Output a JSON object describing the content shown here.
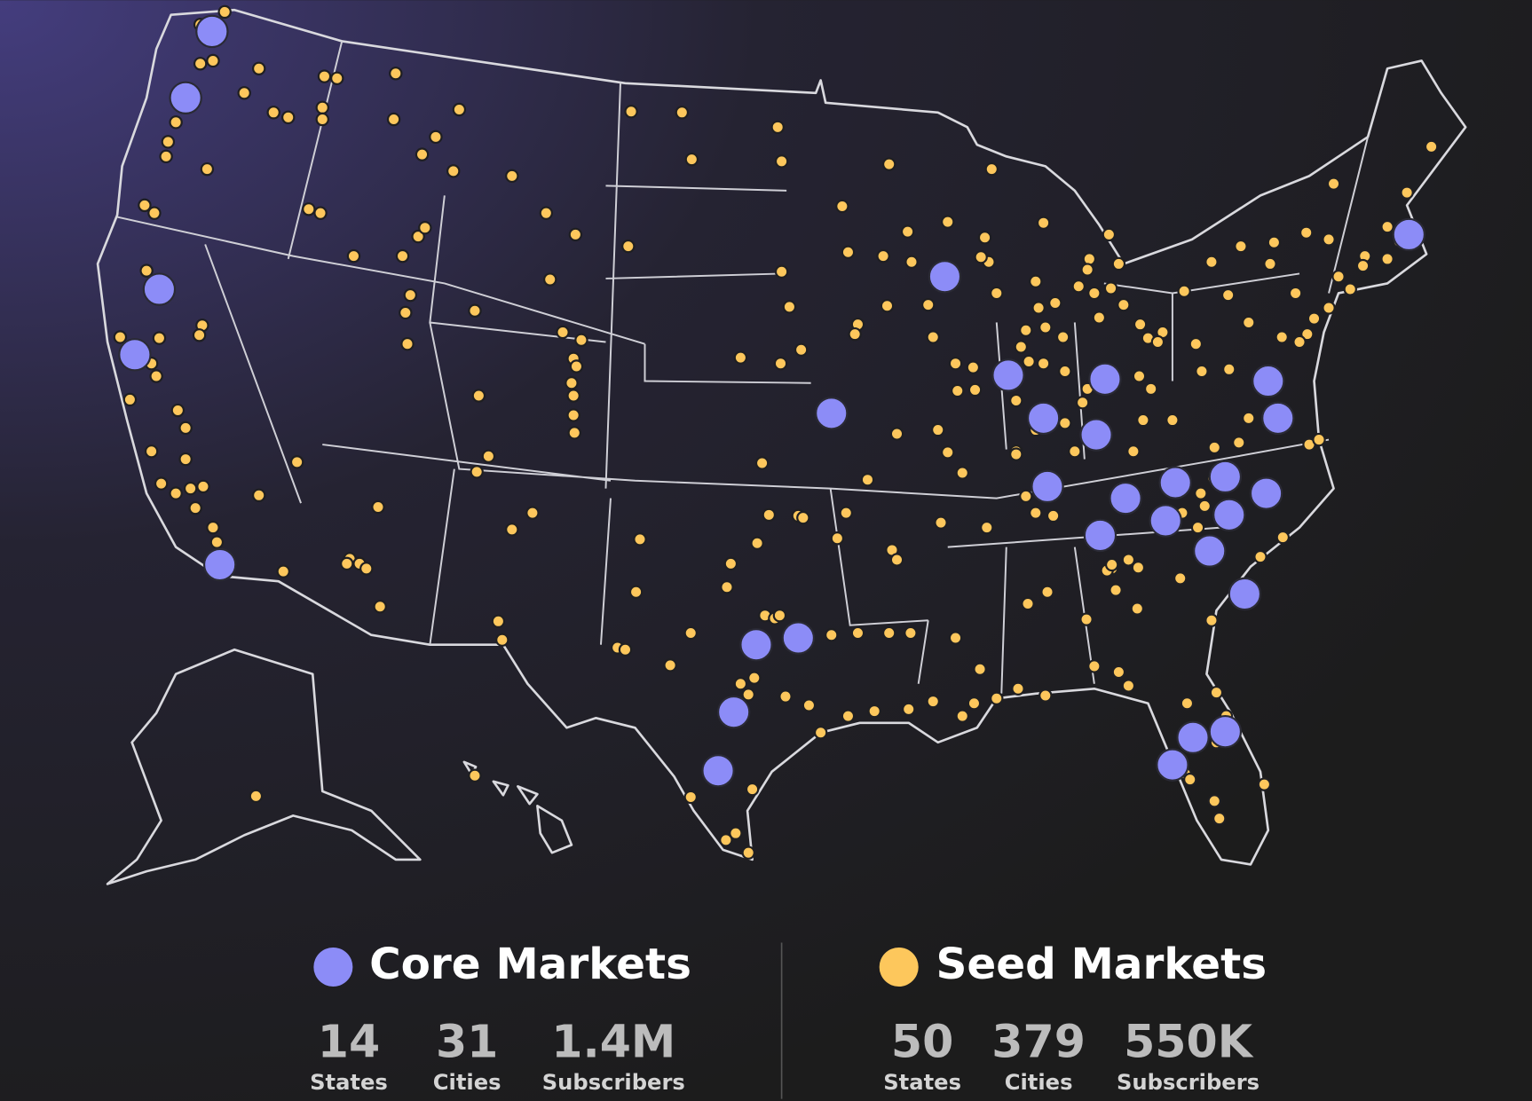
{
  "legend": [
    {
      "title": "Core Markets",
      "stats": [
        {
          "value": "14",
          "label": "States"
        },
        {
          "value": "31",
          "label": "Cities"
        },
        {
          "value": "1.4M",
          "label": "Subscribers"
        }
      ]
    },
    {
      "title": "Seed Markets",
      "stats": [
        {
          "value": "50",
          "label": "States"
        },
        {
          "value": "379",
          "label": "Cities"
        },
        {
          "value": "550K",
          "label": "Subscribers"
        }
      ]
    }
  ]
}
